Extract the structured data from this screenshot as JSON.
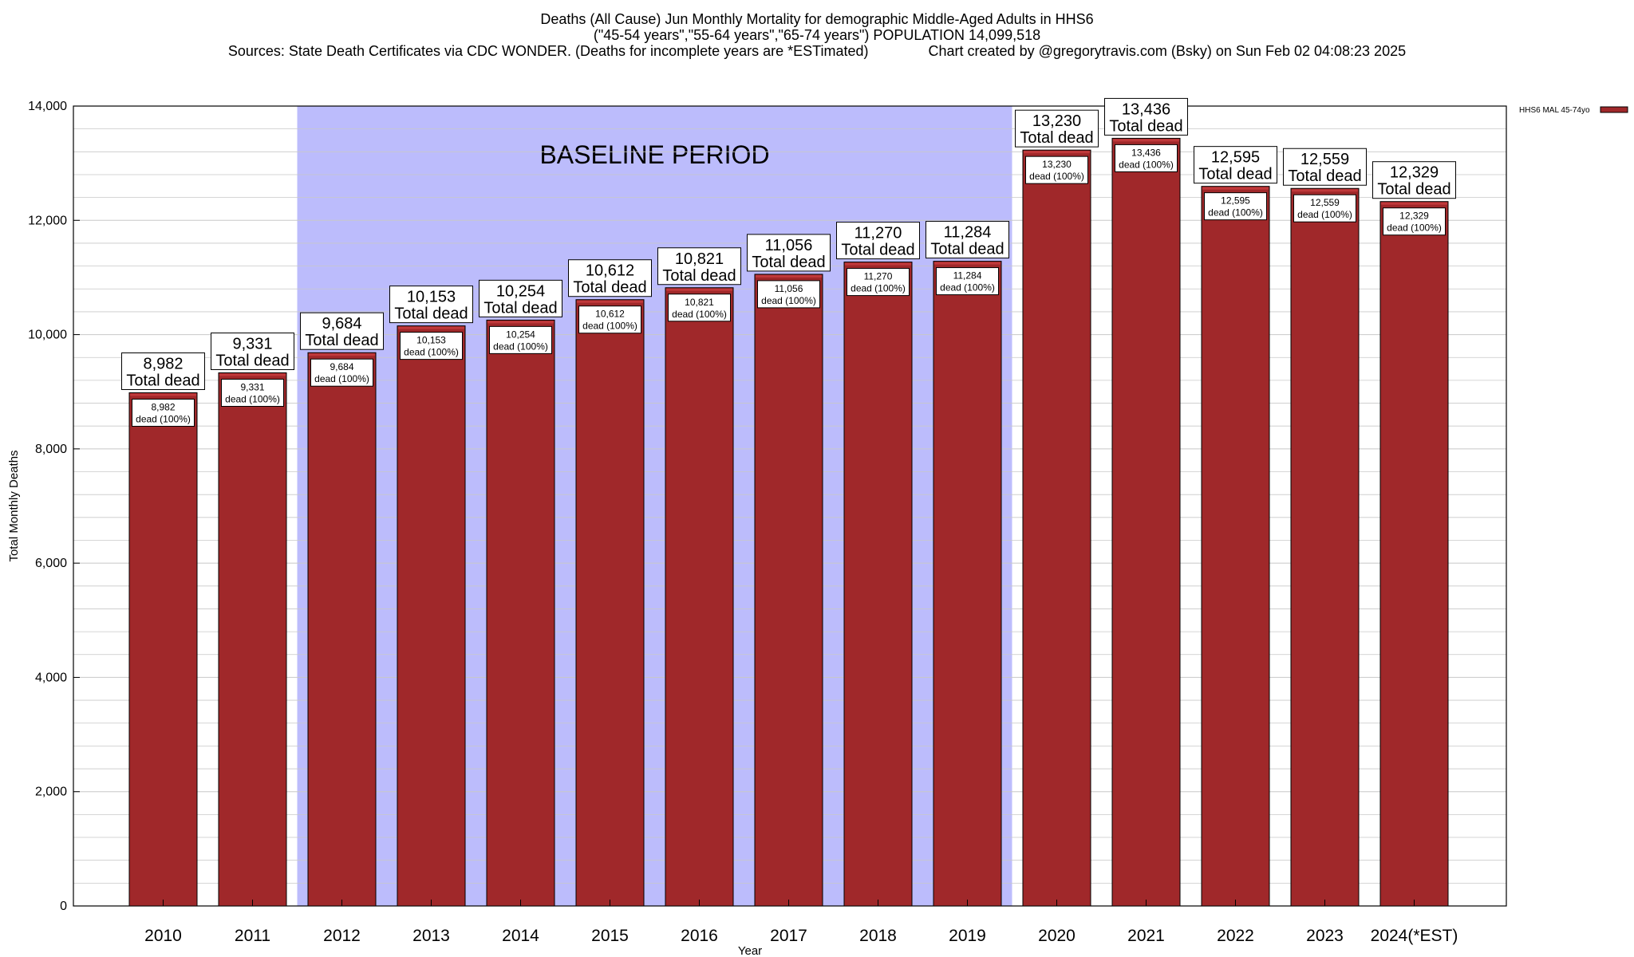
{
  "header": {
    "title": "Deaths (All Cause) Jun Monthly Mortality for demographic Middle-Aged Adults in HHS6",
    "subtitle": "(\"45-54 years\",\"55-64 years\",\"65-74 years\") POPULATION 14,099,518",
    "sources": "Sources: State Death Certificates via CDC WONDER. (Deaths for incomplete years are *ESTimated)",
    "credit": "Chart created by @gregorytravis.com (Bsky) on Sun Feb 02 04:08:23 2025"
  },
  "chart_data": {
    "type": "bar",
    "categories": [
      "2010",
      "2011",
      "2012",
      "2013",
      "2014",
      "2015",
      "2016",
      "2017",
      "2018",
      "2019",
      "2020",
      "2021",
      "2022",
      "2023",
      "2024(*EST)"
    ],
    "series": [
      {
        "name": "HHS6 MAL 45-74yo",
        "values": [
          8982,
          9331,
          9684,
          10153,
          10254,
          10612,
          10821,
          11056,
          11270,
          11284,
          13230,
          13436,
          12595,
          12559,
          12329
        ]
      }
    ],
    "value_labels": [
      "8,982",
      "9,331",
      "9,684",
      "10,153",
      "10,254",
      "10,612",
      "10,821",
      "11,056",
      "11,270",
      "11,284",
      "13,230",
      "13,436",
      "12,595",
      "12,559",
      "12,329"
    ],
    "top_label_suffix": "Total dead",
    "inner_label_suffix": "dead (100%)",
    "xlabel": "Year",
    "ylabel": "Total Monthly Deaths",
    "ylim": [
      0,
      14000
    ],
    "yticks": [
      0,
      2000,
      4000,
      6000,
      8000,
      10000,
      12000,
      14000
    ],
    "ytick_labels": [
      "0",
      "2,000",
      "4,000",
      "6,000",
      "8,000",
      "10,000",
      "12,000",
      "14,000"
    ],
    "baseline": {
      "label": "BASELINE PERIOD",
      "start": "2012",
      "end": "2019"
    },
    "legend_position": "top-right",
    "grid": true,
    "colors": {
      "bar": "#a0282a",
      "bar_top": "#c0393b",
      "baseline": "#bcbcfc",
      "grid": "#c8c8c8"
    }
  }
}
